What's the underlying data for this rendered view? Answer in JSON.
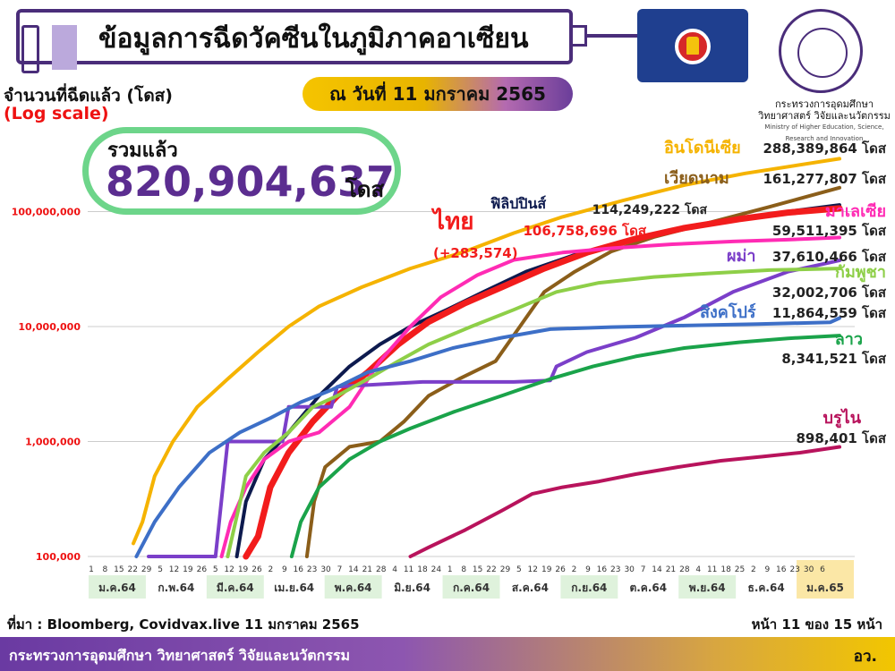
{
  "header": {
    "title": "ข้อมูลการฉีดวัคซีนในภูมิภาคอาเซียน",
    "y_title": "จำนวนที่ฉีดแล้ว (โดส)",
    "log_label": "(Log scale)",
    "as_of": "ณ วันที่ 11 มกราคม 2565",
    "ministry_th_1": "กระทรวงการอุดมศึกษา",
    "ministry_th_2": "วิทยาศาสตร์ วิจัยและนวัตกรรม",
    "ministry_en": "Ministry of Higher Education, Science, Research and Innovation"
  },
  "total": {
    "label": "รวมแล้ว",
    "value": "820,904,637",
    "unit": "โดส"
  },
  "chart_data": {
    "type": "line",
    "y_scale": "log",
    "ylim": [
      100000,
      300000000
    ],
    "y_ticks": [
      "100,000",
      "1,000,000",
      "10,000,000",
      "100,000,000"
    ],
    "y_tick_values": [
      100000,
      1000000,
      10000000,
      100000000
    ],
    "x_day_labels": [
      "1",
      "8",
      "15",
      "22",
      "29",
      "5",
      "12",
      "19",
      "26",
      "5",
      "12",
      "19",
      "26",
      "2",
      "9",
      "16",
      "23",
      "30",
      "7",
      "14",
      "21",
      "28",
      "4",
      "11",
      "18",
      "24",
      "1",
      "8",
      "15",
      "22",
      "29",
      "5",
      "12",
      "19",
      "26",
      "2",
      "9",
      "16",
      "23",
      "30",
      "7",
      "14",
      "21",
      "28",
      "4",
      "11",
      "18",
      "25",
      "2",
      "9",
      "16",
      "23",
      "30",
      "6"
    ],
    "x_months": [
      "ม.ค.64",
      "ก.พ.64",
      "มี.ค.64",
      "เม.ย.64",
      "พ.ค.64",
      "มิ.ย.64",
      "ก.ค.64",
      "ส.ค.64",
      "ก.ย.64",
      "ต.ค.64",
      "พ.ย.64",
      "ธ.ค.64",
      "ม.ค.65"
    ],
    "series": [
      {
        "name": "อินโดนีเซีย",
        "value_label": "288,389,864",
        "unit": "โดส",
        "color": "#f5b300",
        "points": [
          [
            0.75,
            130000
          ],
          [
            0.9,
            200000
          ],
          [
            1.1,
            500000
          ],
          [
            1.4,
            1000000
          ],
          [
            1.8,
            2000000
          ],
          [
            2.3,
            3500000
          ],
          [
            2.8,
            6000000
          ],
          [
            3.3,
            10000000
          ],
          [
            3.8,
            15000000
          ],
          [
            4.5,
            22000000
          ],
          [
            5.3,
            32000000
          ],
          [
            6.2,
            45000000
          ],
          [
            7.0,
            65000000
          ],
          [
            7.8,
            90000000
          ],
          [
            8.8,
            125000000
          ],
          [
            9.8,
            170000000
          ],
          [
            10.8,
            215000000
          ],
          [
            11.8,
            260000000
          ],
          [
            12.35,
            288389864
          ]
        ]
      },
      {
        "name": "เวียดนาม",
        "value_label": "161,277,807",
        "unit": "โดส",
        "color": "#8b5e1a",
        "points": [
          [
            3.6,
            100000
          ],
          [
            3.72,
            300000
          ],
          [
            3.9,
            600000
          ],
          [
            4.3,
            900000
          ],
          [
            4.8,
            1000000
          ],
          [
            5.2,
            1500000
          ],
          [
            5.6,
            2500000
          ],
          [
            6.1,
            3500000
          ],
          [
            6.7,
            5000000
          ],
          [
            7.1,
            10000000
          ],
          [
            7.5,
            20000000
          ],
          [
            8.0,
            30000000
          ],
          [
            8.6,
            45000000
          ],
          [
            9.3,
            60000000
          ],
          [
            10.2,
            80000000
          ],
          [
            11.2,
            110000000
          ],
          [
            12.35,
            161277807
          ]
        ]
      },
      {
        "name": "ฟิลิปปินส์",
        "value_label": "114,249,222",
        "unit": "โดส",
        "color": "#0d1a4e",
        "points": [
          [
            2.45,
            100000
          ],
          [
            2.6,
            300000
          ],
          [
            2.9,
            700000
          ],
          [
            3.3,
            1200000
          ],
          [
            3.8,
            2500000
          ],
          [
            4.3,
            4500000
          ],
          [
            4.8,
            7000000
          ],
          [
            5.3,
            10000000
          ],
          [
            5.9,
            14000000
          ],
          [
            6.5,
            20000000
          ],
          [
            7.2,
            30000000
          ],
          [
            8.0,
            42000000
          ],
          [
            8.8,
            55000000
          ],
          [
            9.7,
            70000000
          ],
          [
            10.6,
            85000000
          ],
          [
            11.5,
            100000000
          ],
          [
            12.35,
            114249222
          ]
        ]
      },
      {
        "name": "ไทย",
        "value_label": "106,758,696",
        "unit": "โดส",
        "delta": "(+283,574)",
        "color": "#f21c1c",
        "points": [
          [
            2.6,
            100000
          ],
          [
            2.8,
            150000
          ],
          [
            3.0,
            400000
          ],
          [
            3.3,
            800000
          ],
          [
            3.7,
            1500000
          ],
          [
            4.1,
            2500000
          ],
          [
            4.6,
            4000000
          ],
          [
            5.1,
            7000000
          ],
          [
            5.6,
            11000000
          ],
          [
            6.2,
            16000000
          ],
          [
            6.8,
            22000000
          ],
          [
            7.5,
            32000000
          ],
          [
            8.2,
            44000000
          ],
          [
            9.0,
            58000000
          ],
          [
            9.8,
            72000000
          ],
          [
            10.7,
            86000000
          ],
          [
            11.5,
            98000000
          ],
          [
            12.35,
            106758696
          ]
        ]
      },
      {
        "name": "มาเลเซีย",
        "value_label": "59,511,395",
        "unit": "โดส",
        "color": "#ff2bb4",
        "points": [
          [
            2.2,
            100000
          ],
          [
            2.35,
            200000
          ],
          [
            2.6,
            400000
          ],
          [
            2.9,
            700000
          ],
          [
            3.3,
            1000000
          ],
          [
            3.8,
            1200000
          ],
          [
            4.3,
            2000000
          ],
          [
            4.8,
            5000000
          ],
          [
            5.3,
            10000000
          ],
          [
            5.8,
            18000000
          ],
          [
            6.4,
            28000000
          ],
          [
            7.0,
            38000000
          ],
          [
            7.8,
            44000000
          ],
          [
            8.6,
            48000000
          ],
          [
            9.6,
            52000000
          ],
          [
            10.6,
            55000000
          ],
          [
            11.5,
            57000000
          ],
          [
            12.35,
            59511395
          ]
        ]
      },
      {
        "name": "ผม่า",
        "value_label": "37,610,466",
        "unit": "โดส",
        "color": "#7b3fc9",
        "points": [
          [
            1.0,
            100000
          ],
          [
            1.6,
            100000
          ],
          [
            2.1,
            100000
          ],
          [
            2.3,
            1000000
          ],
          [
            3.2,
            1000000
          ],
          [
            3.3,
            2000000
          ],
          [
            4.0,
            2000000
          ],
          [
            4.1,
            3000000
          ],
          [
            5.5,
            3300000
          ],
          [
            7.0,
            3300000
          ],
          [
            7.6,
            3400000
          ],
          [
            7.7,
            4500000
          ],
          [
            8.2,
            6000000
          ],
          [
            9.0,
            8000000
          ],
          [
            9.8,
            12000000
          ],
          [
            10.6,
            20000000
          ],
          [
            11.5,
            30000000
          ],
          [
            12.35,
            37610466
          ]
        ]
      },
      {
        "name": "กัมพูชา",
        "value_label": "32,002,706",
        "unit": "โดส",
        "color": "#8ecf48",
        "points": [
          [
            2.3,
            100000
          ],
          [
            2.6,
            500000
          ],
          [
            2.9,
            800000
          ],
          [
            3.3,
            1200000
          ],
          [
            3.7,
            2000000
          ],
          [
            4.1,
            2500000
          ],
          [
            4.6,
            3500000
          ],
          [
            5.1,
            5000000
          ],
          [
            5.6,
            7000000
          ],
          [
            6.3,
            10000000
          ],
          [
            7.0,
            14000000
          ],
          [
            7.7,
            20000000
          ],
          [
            8.4,
            24000000
          ],
          [
            9.3,
            27000000
          ],
          [
            10.2,
            29000000
          ],
          [
            11.2,
            31000000
          ],
          [
            12.35,
            32002706
          ]
        ]
      },
      {
        "name": "สิงคโปร์",
        "value_label": "11,864,559",
        "unit": "โดส",
        "color": "#3d6fc7",
        "points": [
          [
            0.8,
            100000
          ],
          [
            1.1,
            200000
          ],
          [
            1.5,
            400000
          ],
          [
            2.0,
            800000
          ],
          [
            2.5,
            1200000
          ],
          [
            3.0,
            1600000
          ],
          [
            3.5,
            2200000
          ],
          [
            4.0,
            2800000
          ],
          [
            4.6,
            4000000
          ],
          [
            5.3,
            5000000
          ],
          [
            6.0,
            6500000
          ],
          [
            6.8,
            8000000
          ],
          [
            7.6,
            9500000
          ],
          [
            8.6,
            9900000
          ],
          [
            9.8,
            10200000
          ],
          [
            11.0,
            10500000
          ],
          [
            12.2,
            10900000
          ],
          [
            12.35,
            11864559
          ]
        ]
      },
      {
        "name": "ลาว",
        "value_label": "8,341,521",
        "unit": "โดส",
        "color": "#1aa34a",
        "points": [
          [
            3.35,
            100000
          ],
          [
            3.5,
            200000
          ],
          [
            3.8,
            400000
          ],
          [
            4.3,
            700000
          ],
          [
            4.8,
            1000000
          ],
          [
            5.3,
            1300000
          ],
          [
            6.0,
            1800000
          ],
          [
            6.8,
            2500000
          ],
          [
            7.6,
            3500000
          ],
          [
            8.3,
            4500000
          ],
          [
            9.0,
            5500000
          ],
          [
            9.8,
            6500000
          ],
          [
            10.7,
            7300000
          ],
          [
            11.5,
            7900000
          ],
          [
            12.35,
            8341521
          ]
        ]
      },
      {
        "name": "บรูไน",
        "value_label": "898,401",
        "unit": "โดส",
        "color": "#b8135c",
        "points": [
          [
            5.3,
            100000
          ],
          [
            5.6,
            120000
          ],
          [
            6.2,
            170000
          ],
          [
            6.8,
            250000
          ],
          [
            7.3,
            350000
          ],
          [
            7.8,
            400000
          ],
          [
            8.4,
            450000
          ],
          [
            9.0,
            520000
          ],
          [
            9.7,
            600000
          ],
          [
            10.4,
            680000
          ],
          [
            11.1,
            740000
          ],
          [
            11.7,
            800000
          ],
          [
            12.35,
            898401
          ]
        ]
      }
    ]
  },
  "source": "ที่มา : Bloomberg, Covidvax.live 11 มกราคม 2565",
  "page": "หน้า 11 ของ 15 หน้า",
  "footer": {
    "ministry": "กระทรวงการอุดมศึกษา วิทยาศาสตร์ วิจัยและนวัตกรรม",
    "abbr": "อว."
  }
}
